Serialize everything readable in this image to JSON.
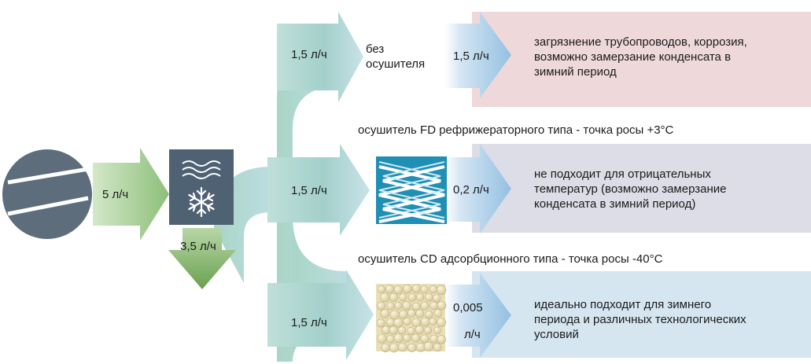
{
  "compressor": {
    "flow": "5 л/ч"
  },
  "aftercooler": {
    "condensate": "3,5 л/ч",
    "icon": "air-snowflake-icon"
  },
  "rows": [
    {
      "id": "no-dryer",
      "input_flow": "1,5 л/ч",
      "device_label_line1": "без",
      "device_label_line2": "осушителя",
      "output_flow": "1,5 л/ч",
      "output_flow_line2": "",
      "result_lines": [
        "загрязнение трубопроводов, коррозия,",
        "возможно замерзание конденсата в",
        "зимний период"
      ],
      "band_color": "#efd8da"
    },
    {
      "id": "fd-dryer",
      "title": "осушитель FD рефрижераторного типа - точка росы +3°С",
      "input_flow": "1,5 л/ч",
      "device_icon": "zigzag-heat-exchanger-icon",
      "output_flow": "0,2 л/ч",
      "output_flow_line2": "",
      "result_lines": [
        "не подходит для отрицательных",
        "температур (возможно замерзание",
        "конденсата в зимний период)"
      ],
      "band_color": "#dcdde6"
    },
    {
      "id": "cd-dryer",
      "title": "осушитель CD адсорбционного типа - точка росы -40°С",
      "input_flow": "1,5 л/ч",
      "device_icon": "adsorbent-beads-icon",
      "output_flow": "0,005",
      "output_flow_line2": "л/ч",
      "result_lines": [
        "идеально подходит для зимнего",
        "периода и различных технологических",
        "условий"
      ],
      "band_color": "#d5e6f1"
    }
  ],
  "colors": {
    "compressor": "#5e6d7c",
    "unit_box": "#4f6274",
    "arrow_green": "#8bb878",
    "arrow_teal": "#a8d2cc",
    "arrow_blue": "#a5cbe6"
  }
}
